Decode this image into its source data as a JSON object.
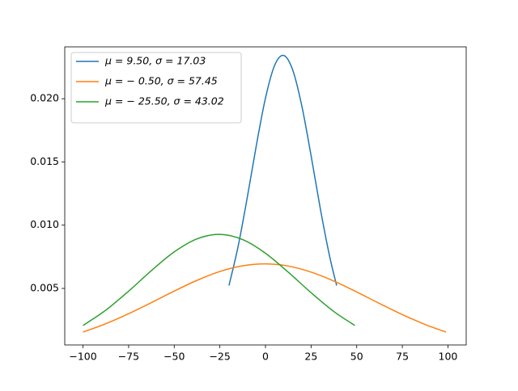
{
  "chart_data": {
    "type": "line",
    "series": [
      {
        "name": "μ = 9.50,  σ = 17.03",
        "color": "#1f77b4",
        "x": [
          -20,
          -15,
          -10,
          -5,
          0,
          5,
          10,
          15,
          20,
          25,
          30,
          35,
          39
        ],
        "values": [
          0.00523,
          0.00832,
          0.01217,
          0.01631,
          0.02005,
          0.02263,
          0.02342,
          0.02224,
          0.01937,
          0.01549,
          0.01135,
          0.00764,
          0.00523
        ]
      },
      {
        "name": "μ = − 0.50,  σ = 57.45",
        "color": "#ff7f0e",
        "x": [
          -100,
          -87.5,
          -75,
          -62.5,
          -50,
          -37.5,
          -25,
          -12.5,
          0,
          12.5,
          25,
          37.5,
          50,
          62.5,
          75,
          87.5,
          99
        ],
        "values": [
          0.00155,
          0.00221,
          0.003,
          0.00388,
          0.00479,
          0.00564,
          0.00634,
          0.00679,
          0.00694,
          0.00677,
          0.00629,
          0.00558,
          0.00472,
          0.00381,
          0.00293,
          0.00215,
          0.00155
        ]
      },
      {
        "name": "μ = − 25.50,  σ = 43.02",
        "color": "#2ca02c",
        "x": [
          -100,
          -87.5,
          -75,
          -62.5,
          -50,
          -37.5,
          -25,
          -12.5,
          0,
          12.5,
          25,
          37.5,
          49
        ],
        "values": [
          0.00207,
          0.00328,
          0.00478,
          0.00641,
          0.00789,
          0.00892,
          0.00927,
          0.00886,
          0.00778,
          0.00628,
          0.00466,
          0.00317,
          0.00207
        ]
      }
    ],
    "xlim": [
      -110,
      110
    ],
    "xticks": [
      {
        "value": -100,
        "label": "−100"
      },
      {
        "value": -75,
        "label": "−75"
      },
      {
        "value": -50,
        "label": "−50"
      },
      {
        "value": -25,
        "label": "−25"
      },
      0,
      25,
      50,
      75,
      100
    ],
    "ylim": [
      0.00053,
      0.0241
    ],
    "yticks": [
      0.005,
      {
        "value": 0.01,
        "label": "0.010"
      },
      0.015,
      {
        "value": 0.02,
        "label": "0.020"
      }
    ],
    "legend": "upper left"
  }
}
